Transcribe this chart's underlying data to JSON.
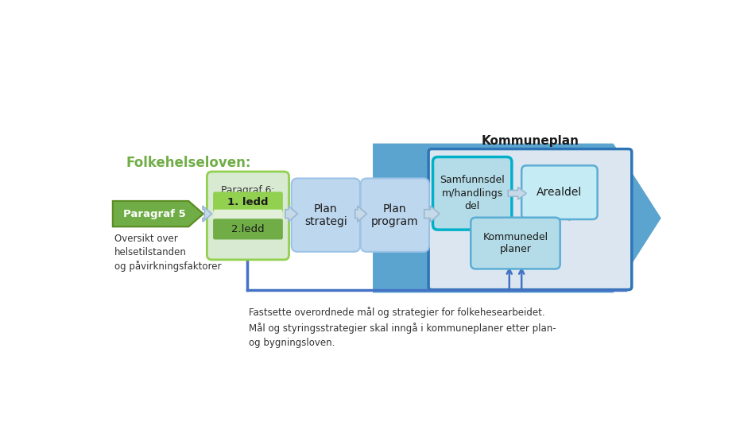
{
  "bg_color": "#ffffff",
  "folkehelseloven_text": "Folkehelseloven:",
  "folkehelseloven_color": "#70ad47",
  "paragraf5_text": "Paragraf 5",
  "paragraf5_color": "#70ad47",
  "paragraf5_border": "#5a8c22",
  "paragraf5_text_color": "#ffffff",
  "paragraf6_bg": "#d9ead3",
  "paragraf6_border": "#92d050",
  "paragraf6_title": "Paragraf 6:",
  "ledd1_text": "1. ledd",
  "ledd1_color": "#92d050",
  "ledd2_text": "2.ledd",
  "ledd2_color": "#70ad47",
  "ledd_stripe_color": "#e2f0d9",
  "oversikt_text": "Oversikt over\nhelsetilstanden\nog påvirkningsfaktorer",
  "plan_strategi_text": "Plan\nstrategi",
  "plan_program_text": "Plan\nprogram",
  "plan_box_bg": "#bdd7ee",
  "plan_box_border": "#9dc3e6",
  "big_arrow_color": "#5ba4cf",
  "kommuneplan_title": "Kommuneplan",
  "kommuneplan_outer_bg": "#dce6f1",
  "kommuneplan_border": "#2e75b6",
  "samfunnsdel_text": "Samfunnsdel\nm/handlings\ndel",
  "samfunnsdel_bg": "#b3dce8",
  "samfunnsdel_border": "#00b0c8",
  "arealdel_text": "Arealdel",
  "arealdel_bg": "#c5ebf5",
  "arealdel_border": "#5badd4",
  "kommunedel_text": "Kommunedel\nplaner",
  "kommunedel_bg": "#b3dce8",
  "kommunedel_border": "#5badd4",
  "flow_arrow_fill": "#c5d9e8",
  "flow_arrow_border": "#9ab8d0",
  "feedback_arrow_color": "#4472c4",
  "bottom_line_color": "#4472c4",
  "bottom_text": "Fastsette overordnede mål og strategier for folkehesearbeidet.\nMål og styringsstrategier skal inngå i kommuneplaner etter plan-\nog bygningsloven.",
  "text_color": "#333333"
}
